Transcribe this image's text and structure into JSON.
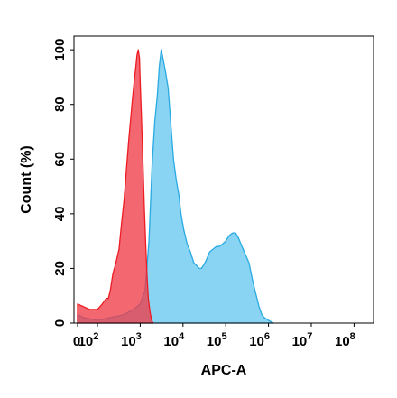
{
  "chart_data": {
    "type": "area",
    "xlabel": "APC-A",
    "ylabel": "Count (%)",
    "x_scale": "log",
    "xlim": [
      0,
      100000000
    ],
    "ylim": [
      0,
      105
    ],
    "x_ticks": [
      {
        "value": 0,
        "base": "0",
        "exp": ""
      },
      {
        "value": 100,
        "base": "10",
        "exp": "2"
      },
      {
        "value": 1000,
        "base": "10",
        "exp": "3"
      },
      {
        "value": 10000,
        "base": "10",
        "exp": "4"
      },
      {
        "value": 100000,
        "base": "10",
        "exp": "5"
      },
      {
        "value": 1000000,
        "base": "10",
        "exp": "6"
      },
      {
        "value": 10000000,
        "base": "10",
        "exp": "7"
      },
      {
        "value": 100000000,
        "base": "10",
        "exp": "8"
      }
    ],
    "y_ticks": [
      "0",
      "20",
      "40",
      "60",
      "80",
      "100"
    ],
    "grid": false,
    "legend": "none",
    "series": [
      {
        "color": "#29aae1",
        "fill": "#89d3f3",
        "points": [
          [
            0,
            3
          ],
          [
            30,
            2
          ],
          [
            100,
            1
          ],
          [
            200,
            2
          ],
          [
            400,
            3
          ],
          [
            700,
            5
          ],
          [
            1000,
            7
          ],
          [
            1300,
            12
          ],
          [
            1600,
            30
          ],
          [
            1900,
            58
          ],
          [
            2200,
            74
          ],
          [
            2500,
            83
          ],
          [
            2800,
            94
          ],
          [
            3100,
            100
          ],
          [
            3400,
            97
          ],
          [
            3900,
            92
          ],
          [
            4500,
            86
          ],
          [
            5200,
            73
          ],
          [
            6000,
            60
          ],
          [
            7000,
            52
          ],
          [
            8000,
            47
          ],
          [
            9000,
            40
          ],
          [
            10500,
            34
          ],
          [
            12500,
            29
          ],
          [
            15000,
            26
          ],
          [
            18000,
            22
          ],
          [
            21000,
            21
          ],
          [
            24000,
            20
          ],
          [
            27000,
            20
          ],
          [
            30000,
            21
          ],
          [
            35000,
            23
          ],
          [
            42000,
            26
          ],
          [
            50000,
            27
          ],
          [
            60000,
            28
          ],
          [
            70000,
            28
          ],
          [
            85000,
            29
          ],
          [
            100000,
            30
          ],
          [
            120000,
            32
          ],
          [
            145000,
            33
          ],
          [
            170000,
            33
          ],
          [
            200000,
            31
          ],
          [
            240000,
            28
          ],
          [
            290000,
            25
          ],
          [
            350000,
            22
          ],
          [
            420000,
            16
          ],
          [
            500000,
            11
          ],
          [
            600000,
            6
          ],
          [
            700000,
            3
          ],
          [
            800000,
            2
          ],
          [
            1000000,
            1
          ],
          [
            1300000,
            0
          ]
        ]
      },
      {
        "color": "#ed1c24",
        "fill": "rgba(238,60,72,0.78)",
        "points": [
          [
            0,
            7
          ],
          [
            30,
            6
          ],
          [
            60,
            5
          ],
          [
            100,
            5
          ],
          [
            130,
            7
          ],
          [
            160,
            9
          ],
          [
            180,
            9
          ],
          [
            200,
            12
          ],
          [
            230,
            18
          ],
          [
            270,
            22
          ],
          [
            320,
            27
          ],
          [
            370,
            37
          ],
          [
            420,
            45
          ],
          [
            480,
            57
          ],
          [
            540,
            67
          ],
          [
            600,
            75
          ],
          [
            660,
            82
          ],
          [
            720,
            88
          ],
          [
            780,
            93
          ],
          [
            840,
            98
          ],
          [
            900,
            100
          ],
          [
            960,
            97
          ],
          [
            1000,
            88
          ],
          [
            1070,
            75
          ],
          [
            1150,
            60
          ],
          [
            1250,
            42
          ],
          [
            1350,
            28
          ],
          [
            1450,
            17
          ],
          [
            1550,
            9
          ],
          [
            1700,
            4
          ],
          [
            1850,
            1
          ],
          [
            2000,
            0
          ]
        ]
      }
    ]
  }
}
